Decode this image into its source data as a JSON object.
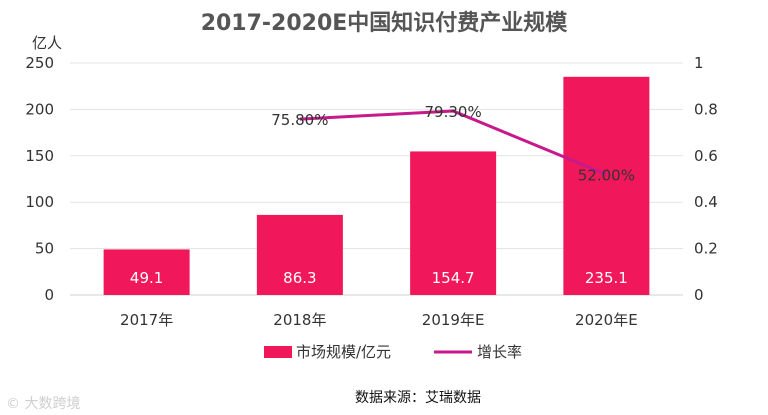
{
  "chart_data": {
    "type": "bar",
    "title": "2017-2020E中国知识付费产业规模",
    "ylabel": "亿人",
    "categories": [
      "2017年",
      "2018年",
      "2019年E",
      "2020年E"
    ],
    "series": [
      {
        "name": "市场规模/亿元",
        "type": "bar",
        "axis": "left",
        "values": [
          49.1,
          86.3,
          154.7,
          235.1
        ],
        "labels": [
          "49.1",
          "86.3",
          "154.7",
          "235.1"
        ],
        "color": "#F0185A"
      },
      {
        "name": "增长率",
        "type": "line",
        "axis": "right",
        "values": [
          null,
          0.758,
          0.793,
          0.52
        ],
        "labels": [
          "",
          "75.80%",
          "79.30%",
          "52.00%"
        ],
        "color": "#C8198C"
      }
    ],
    "ylim": [
      0,
      250
    ],
    "yticks": [
      "0",
      "50",
      "100",
      "150",
      "200",
      "250"
    ],
    "y2lim": [
      0,
      1
    ],
    "y2ticks": [
      "0",
      "0.2",
      "0.4",
      "0.6",
      "0.8",
      "1"
    ],
    "grid": true,
    "legend_position": "bottom",
    "source": "数据来源：艾瑞数据"
  },
  "watermark": "© 大数跨境"
}
